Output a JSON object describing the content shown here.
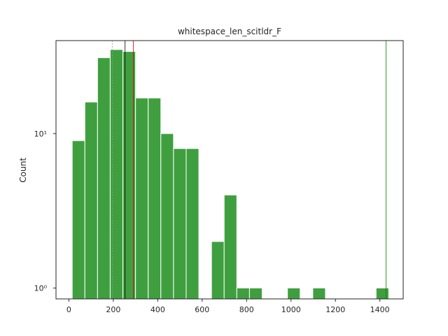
{
  "chart_data": {
    "type": "bar",
    "title": "whitespace_len_scitldr_F",
    "xlabel": "",
    "ylabel": "Count",
    "xlim": [
      -58,
      1505
    ],
    "ylim": [
      0.85,
      40
    ],
    "y_scale": "log",
    "grid": false,
    "bar_color": "#3f9f3f",
    "bar_edge_color": "#ffffff",
    "x_ticks": [
      0,
      200,
      400,
      600,
      800,
      1000,
      1200,
      1400
    ],
    "y_ticks": [
      {
        "value": 1,
        "label": "10⁰"
      },
      {
        "value": 10,
        "label": "10¹"
      }
    ],
    "bins": [
      {
        "x0": 15,
        "x1": 72,
        "count": 9
      },
      {
        "x0": 72,
        "x1": 129,
        "count": 16
      },
      {
        "x0": 129,
        "x1": 186,
        "count": 31
      },
      {
        "x0": 186,
        "x1": 243,
        "count": 35
      },
      {
        "x0": 243,
        "x1": 300,
        "count": 34
      },
      {
        "x0": 300,
        "x1": 357,
        "count": 17
      },
      {
        "x0": 357,
        "x1": 414,
        "count": 17
      },
      {
        "x0": 414,
        "x1": 471,
        "count": 10
      },
      {
        "x0": 471,
        "x1": 528,
        "count": 8
      },
      {
        "x0": 528,
        "x1": 585,
        "count": 8
      },
      {
        "x0": 642,
        "x1": 699,
        "count": 2
      },
      {
        "x0": 699,
        "x1": 756,
        "count": 4
      },
      {
        "x0": 756,
        "x1": 813,
        "count": 1
      },
      {
        "x0": 813,
        "x1": 870,
        "count": 1
      },
      {
        "x0": 984,
        "x1": 1041,
        "count": 1
      },
      {
        "x0": 1098,
        "x1": 1155,
        "count": 1
      },
      {
        "x0": 1383,
        "x1": 1440,
        "count": 1
      }
    ],
    "reference_lines": [
      {
        "x": 195,
        "color": "#999999",
        "style": "dashed"
      },
      {
        "x": 253,
        "color": "#000000",
        "style": "solid"
      },
      {
        "x": 290,
        "color": "#cc0000",
        "style": "solid"
      },
      {
        "x": 1428,
        "color": "#008000",
        "style": "solid"
      }
    ]
  }
}
